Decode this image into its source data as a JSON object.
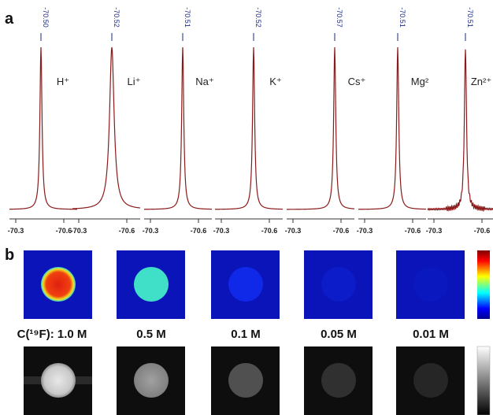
{
  "panel_a": {
    "label": "a",
    "spectra": [
      {
        "peak": "-70.50",
        "ion": "H⁺",
        "ticks": [
          "-70.3",
          "-70.6"
        ]
      },
      {
        "peak": "-70.52",
        "ion": "Li⁺",
        "ticks": [
          "-70.3",
          "-70.6"
        ]
      },
      {
        "peak": "-70.51",
        "ion": "Na⁺",
        "ticks": [
          "-70.3",
          "-70.6"
        ]
      },
      {
        "peak": "-70.52",
        "ion": "K⁺",
        "ticks": [
          "-70.3",
          "-70.6"
        ]
      },
      {
        "peak": "-70.57",
        "ion": "Cs⁺",
        "ticks": [
          "-70.3",
          "-70.6"
        ]
      },
      {
        "peak": "-70.51",
        "ion": "Mg²",
        "ticks": [
          "-70.3",
          "-70.6"
        ]
      },
      {
        "peak": "-70.51",
        "ion": "Zn²⁺",
        "ticks": [
          "-70.3",
          "-70.6"
        ]
      }
    ]
  },
  "panel_b": {
    "label": "b",
    "concentrations": [
      "C(¹⁹F): 1.0 M",
      "0.5 M",
      "0.1 M",
      "0.05 M",
      "0.01 M"
    ]
  }
}
